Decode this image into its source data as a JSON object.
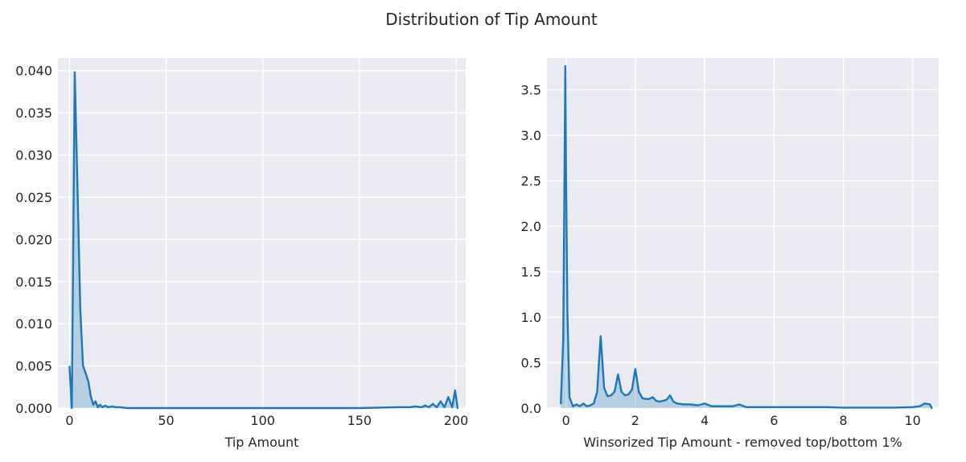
{
  "figure": {
    "title": "Distribution of Tip Amount"
  },
  "chart_data": [
    {
      "type": "area",
      "xlabel": "Tip Amount",
      "ylabel": "",
      "xlim": [
        -6,
        205
      ],
      "ylim": [
        0,
        0.0415
      ],
      "grid": true,
      "legend": "none",
      "color": "#1f77b4",
      "xticks": [
        0,
        50,
        100,
        150,
        200
      ],
      "xtick_labels": [
        "0",
        "50",
        "100",
        "150",
        "200"
      ],
      "yticks": [
        0.0,
        0.005,
        0.01,
        0.015,
        0.02,
        0.025,
        0.03,
        0.035,
        0.04
      ],
      "ytick_labels": [
        "0.000",
        "0.005",
        "0.010",
        "0.015",
        "0.020",
        "0.025",
        "0.030",
        "0.035",
        "0.040"
      ],
      "x": [
        0,
        1.2,
        2.7,
        4.2,
        5.6,
        7,
        8.4,
        9.8,
        11,
        12.3,
        13.5,
        14.6,
        15.8,
        17,
        18.5,
        20,
        22,
        24,
        26,
        30,
        40,
        60,
        100,
        150,
        170,
        176,
        179,
        182,
        184,
        186,
        188,
        190,
        192,
        194,
        196,
        198,
        199.5,
        200.8
      ],
      "y": [
        0.0049,
        0.0,
        0.0398,
        0.0255,
        0.0115,
        0.005,
        0.0041,
        0.0031,
        0.0014,
        0.0004,
        0.0008,
        0.0001,
        0.0004,
        0.0001,
        0.0003,
        0.0001,
        0.0002,
        0.0001,
        0.0001,
        0.0,
        0.0,
        0.0,
        0.0,
        0.0,
        0.0001,
        0.0001,
        0.0002,
        0.0001,
        0.0003,
        0.0001,
        0.0005,
        0.0001,
        0.0008,
        0.0001,
        0.0013,
        0.0001,
        0.0021,
        0.0
      ]
    },
    {
      "type": "area",
      "xlabel": "Winsorized Tip Amount - removed top/bottom 1%",
      "ylabel": "",
      "xlim": [
        -0.55,
        10.75
      ],
      "ylim": [
        0,
        3.85
      ],
      "grid": true,
      "legend": "none",
      "color": "#1f77b4",
      "xticks": [
        0,
        2,
        4,
        6,
        8,
        10
      ],
      "xtick_labels": [
        "0",
        "2",
        "4",
        "6",
        "8",
        "10"
      ],
      "yticks": [
        0.0,
        0.5,
        1.0,
        1.5,
        2.0,
        2.5,
        3.0,
        3.5
      ],
      "ytick_labels": [
        "0.0",
        "0.5",
        "1.0",
        "1.5",
        "2.0",
        "2.5",
        "3.0",
        "3.5"
      ],
      "x": [
        -0.15,
        -0.08,
        -0.02,
        0.0,
        0.04,
        0.1,
        0.2,
        0.3,
        0.4,
        0.5,
        0.6,
        0.7,
        0.8,
        0.9,
        0.95,
        1.0,
        1.1,
        1.2,
        1.3,
        1.4,
        1.5,
        1.6,
        1.7,
        1.8,
        1.9,
        2.0,
        2.1,
        2.2,
        2.3,
        2.4,
        2.5,
        2.6,
        2.7,
        2.8,
        2.9,
        3.0,
        3.1,
        3.2,
        3.4,
        3.6,
        3.8,
        4.0,
        4.2,
        4.5,
        4.8,
        5.0,
        5.2,
        5.5,
        6.0,
        6.5,
        7.0,
        7.5,
        8.0,
        8.5,
        9.0,
        9.5,
        10.0,
        10.2,
        10.35,
        10.5,
        10.55
      ],
      "y": [
        0.05,
        0.75,
        3.76,
        2.6,
        1.05,
        0.12,
        0.02,
        0.04,
        0.02,
        0.05,
        0.02,
        0.03,
        0.05,
        0.18,
        0.5,
        0.79,
        0.22,
        0.13,
        0.14,
        0.18,
        0.37,
        0.18,
        0.14,
        0.15,
        0.2,
        0.43,
        0.18,
        0.11,
        0.1,
        0.1,
        0.12,
        0.08,
        0.07,
        0.08,
        0.09,
        0.14,
        0.07,
        0.05,
        0.04,
        0.04,
        0.03,
        0.05,
        0.02,
        0.02,
        0.02,
        0.04,
        0.01,
        0.01,
        0.01,
        0.01,
        0.01,
        0.01,
        0.005,
        0.005,
        0.005,
        0.005,
        0.01,
        0.02,
        0.05,
        0.04,
        0.0
      ]
    }
  ]
}
